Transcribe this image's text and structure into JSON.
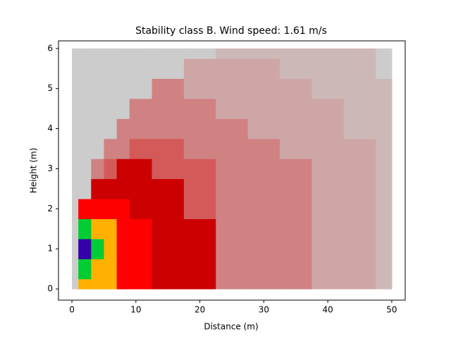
{
  "chart_data": {
    "type": "heatmap",
    "title": "Stability class B. Wind speed: 1.61 m/s",
    "x_label": "Distance (m)",
    "y_label": "Height (m)",
    "x": [
      0,
      2,
      4,
      6,
      8,
      10,
      15,
      20,
      25,
      30,
      35,
      40,
      45,
      50
    ],
    "y": [
      0,
      0.5,
      1,
      1.5,
      2,
      2.5,
      3,
      3.5,
      4,
      4.5,
      5,
      5.5,
      6
    ],
    "z": [
      [
        0,
        7,
        7,
        7,
        6,
        6,
        5,
        5,
        3,
        3,
        3,
        2,
        2,
        1
      ],
      [
        0,
        8,
        7,
        7,
        6,
        6,
        5,
        5,
        3,
        3,
        3,
        2,
        2,
        1
      ],
      [
        0,
        9,
        8,
        7,
        6,
        6,
        5,
        5,
        3,
        3,
        3,
        2,
        2,
        1
      ],
      [
        0,
        8,
        7,
        7,
        6,
        6,
        5,
        5,
        3,
        3,
        3,
        2,
        2,
        1
      ],
      [
        0,
        6,
        6,
        6,
        6,
        5,
        5,
        4,
        3,
        3,
        3,
        2,
        2,
        1
      ],
      [
        0,
        0,
        5,
        5,
        5,
        5,
        5,
        4,
        3,
        3,
        3,
        2,
        2,
        1
      ],
      [
        0,
        0,
        3,
        4,
        5,
        5,
        4,
        4,
        3,
        3,
        3,
        2,
        2,
        1
      ],
      [
        0,
        0,
        0,
        3,
        3,
        4,
        4,
        3,
        3,
        3,
        2,
        2,
        2,
        1
      ],
      [
        0,
        0,
        0,
        0,
        3,
        3,
        3,
        3,
        3,
        2,
        2,
        2,
        1,
        1
      ],
      [
        0,
        0,
        0,
        0,
        0,
        3,
        3,
        3,
        2,
        2,
        2,
        2,
        1,
        1
      ],
      [
        0,
        0,
        0,
        0,
        0,
        0,
        3,
        2,
        2,
        2,
        2,
        1,
        1,
        1
      ],
      [
        0,
        0,
        0,
        0,
        0,
        0,
        0,
        2,
        2,
        2,
        1,
        1,
        1,
        0
      ],
      [
        0,
        0,
        0,
        0,
        0,
        0,
        0,
        0,
        1,
        1,
        1,
        1,
        1,
        0
      ]
    ],
    "colors": [
      "#cccccc",
      "#cdb8b8",
      "#cfa6a6",
      "#d08282",
      "#d45a5a",
      "#cc0000",
      "#ff0000",
      "#ffb000",
      "#00cc33",
      "#3300aa"
    ],
    "xlim": [
      -2.1,
      52.1
    ],
    "ylim": [
      -0.28,
      6.19
    ],
    "xticks": [
      0,
      10,
      20,
      30,
      40,
      50
    ],
    "yticks": [
      0,
      1,
      2,
      3,
      4,
      5,
      6
    ]
  }
}
